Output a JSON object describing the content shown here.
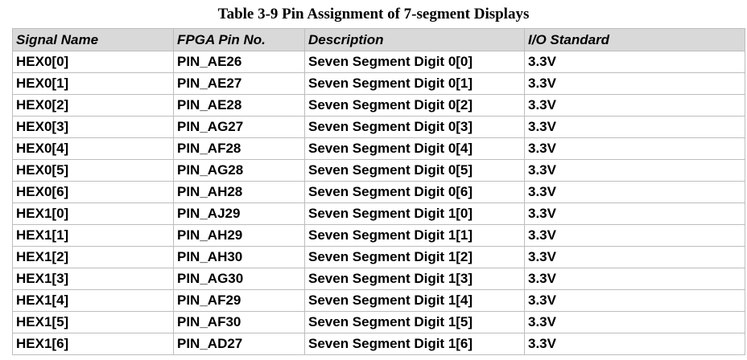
{
  "title": "Table 3-9 Pin Assignment of 7-segment Displays",
  "columns": [
    "Signal Name",
    "FPGA Pin No.",
    "Description",
    "I/O Standard"
  ],
  "rows": [
    [
      "HEX0[0]",
      "PIN_AE26",
      "Seven Segment Digit 0[0]",
      "3.3V"
    ],
    [
      "HEX0[1]",
      "PIN_AE27",
      "Seven Segment Digit 0[1]",
      "3.3V"
    ],
    [
      "HEX0[2]",
      "PIN_AE28",
      "Seven Segment Digit 0[2]",
      "3.3V"
    ],
    [
      "HEX0[3]",
      "PIN_AG27",
      "Seven Segment Digit 0[3]",
      "3.3V"
    ],
    [
      "HEX0[4]",
      "PIN_AF28",
      "Seven Segment Digit 0[4]",
      "3.3V"
    ],
    [
      "HEX0[5]",
      "PIN_AG28",
      "Seven Segment Digit 0[5]",
      "3.3V"
    ],
    [
      "HEX0[6]",
      "PIN_AH28",
      "Seven Segment Digit 0[6]",
      "3.3V"
    ],
    [
      "HEX1[0]",
      "PIN_AJ29",
      "Seven Segment Digit 1[0]",
      "3.3V"
    ],
    [
      "HEX1[1]",
      "PIN_AH29",
      "Seven Segment Digit 1[1]",
      "3.3V"
    ],
    [
      "HEX1[2]",
      "PIN_AH30",
      "Seven Segment Digit 1[2]",
      "3.3V"
    ],
    [
      "HEX1[3]",
      "PIN_AG30",
      "Seven Segment Digit 1[3]",
      "3.3V"
    ],
    [
      "HEX1[4]",
      "PIN_AF29",
      "Seven Segment Digit 1[4]",
      "3.3V"
    ],
    [
      "HEX1[5]",
      "PIN_AF30",
      "Seven Segment Digit 1[5]",
      "3.3V"
    ],
    [
      "HEX1[6]",
      "PIN_AD27",
      "Seven Segment Digit 1[6]",
      "3.3V"
    ]
  ]
}
